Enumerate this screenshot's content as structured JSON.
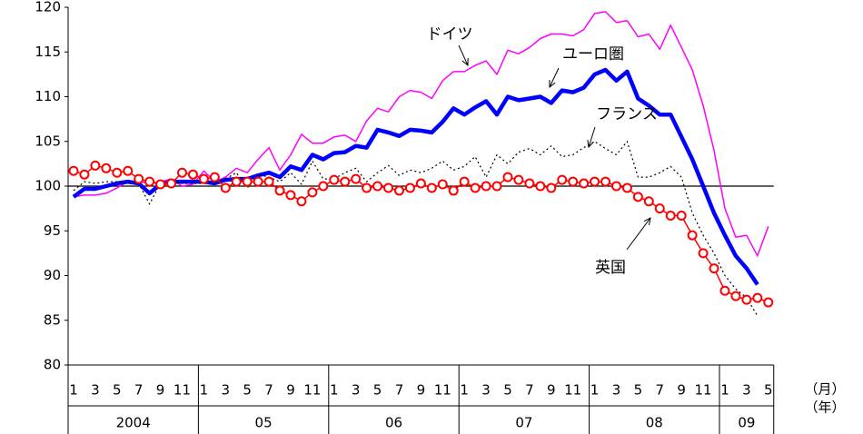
{
  "chart_data": {
    "type": "line",
    "categories": [
      "1",
      null,
      "3",
      null,
      "5",
      null,
      "7",
      null,
      "9",
      null,
      "11",
      null,
      "1",
      null,
      "3",
      null,
      "5",
      null,
      "7",
      null,
      "9",
      null,
      "11",
      null,
      "1",
      null,
      "3",
      null,
      "5",
      null,
      "7",
      null,
      "9",
      null,
      "11",
      null,
      "1",
      null,
      "3",
      null,
      "5",
      null,
      "7",
      null,
      "9",
      null,
      "11",
      null,
      "1",
      null,
      "3",
      null,
      "5",
      null,
      "7",
      null,
      "9",
      null,
      "11",
      null,
      "1",
      null,
      "3",
      null,
      "5"
    ],
    "years": [
      "2004",
      "05",
      "06",
      "07",
      "08",
      "09"
    ],
    "x_unit_label": "（月）",
    "year_unit_label": "（年）",
    "ylim": [
      80,
      120
    ],
    "yticks": [
      80,
      85,
      90,
      95,
      100,
      105,
      110,
      115,
      120
    ],
    "reference_line": 100,
    "series": [
      {
        "name": "ドイツ",
        "color": "#ff00ff",
        "width": 1.5,
        "style": "solid",
        "markers": false,
        "values": [
          98.8,
          99,
          99,
          99.2,
          99.8,
          100.5,
          100.5,
          100.3,
          100.5,
          100.8,
          100,
          100.2,
          101.7,
          100.5,
          101,
          102,
          101.5,
          103,
          104.3,
          101.8,
          103.5,
          105.8,
          104.8,
          104.8,
          105.5,
          105.7,
          105,
          107.3,
          108.7,
          108.3,
          110,
          110.7,
          110.5,
          109.8,
          111.8,
          112.8,
          112.8,
          113.5,
          114,
          112.5,
          115.2,
          114.8,
          115.5,
          116.5,
          117,
          117,
          116.8,
          117.5,
          119.3,
          119.5,
          118.3,
          118.5,
          116.7,
          117,
          115.3,
          118,
          115.5,
          113,
          109,
          104,
          97.5,
          94.3,
          94.5,
          92.2,
          95.5
        ]
      },
      {
        "name": "ユーロ圏",
        "color": "#0000ff",
        "width": 4.5,
        "style": "solid",
        "markers": false,
        "values": [
          98.8,
          99.7,
          99.7,
          100,
          100.3,
          100.5,
          100.3,
          99.2,
          100.2,
          100.5,
          100.5,
          100.5,
          100.5,
          100.3,
          100.7,
          100.8,
          100.8,
          101.2,
          101.5,
          101,
          102.2,
          101.8,
          103.5,
          103,
          103.7,
          103.8,
          104.5,
          104.3,
          106.3,
          106,
          105.6,
          106.3,
          106.2,
          106,
          107.2,
          108.7,
          108,
          108.8,
          109.5,
          108,
          110,
          109.6,
          109.8,
          110,
          109.3,
          110.7,
          110.5,
          111,
          112.5,
          113,
          111.8,
          112.8,
          109.8,
          109,
          108,
          108,
          105.5,
          103,
          100,
          97,
          94.5,
          92.2,
          90.8,
          89,
          null
        ]
      },
      {
        "name": "フランス",
        "color": "#000000",
        "width": 1.2,
        "style": "dotted",
        "markers": false,
        "values": [
          99.5,
          100.5,
          100.3,
          100.5,
          100.5,
          100.3,
          100.3,
          98,
          100.3,
          100.5,
          100.3,
          100.3,
          100.3,
          100.3,
          100.8,
          101.5,
          99.8,
          101.3,
          101,
          100.5,
          101.5,
          100.2,
          102.8,
          100.8,
          100.8,
          101.5,
          102,
          100.5,
          101.5,
          102.3,
          101.2,
          101.8,
          101.5,
          102,
          102.8,
          101.8,
          102.2,
          103.3,
          101,
          103.5,
          102.5,
          103.8,
          104.2,
          103.5,
          104.5,
          103.3,
          103.5,
          104.3,
          105,
          104.2,
          103.5,
          105,
          101,
          101,
          101.5,
          102.2,
          101,
          97,
          94.5,
          92.5,
          90,
          88.5,
          87.5,
          85.5,
          null
        ]
      },
      {
        "name": "英国",
        "color": "#ff0000",
        "width": 1.5,
        "style": "solid",
        "markers": true,
        "values": [
          101.7,
          101.3,
          102.3,
          102,
          101.5,
          101.7,
          100.8,
          100.5,
          100.2,
          100.3,
          101.5,
          101.3,
          100.8,
          101,
          99.8,
          100.5,
          100.5,
          100.5,
          100.5,
          99.5,
          99,
          98.3,
          99.3,
          100,
          100.7,
          100.5,
          100.8,
          99.8,
          100,
          99.8,
          99.5,
          99.8,
          100.3,
          99.8,
          100.2,
          99.5,
          100.5,
          99.8,
          100,
          100,
          101,
          100.7,
          100.3,
          100,
          99.8,
          100.7,
          100.5,
          100.3,
          100.5,
          100.5,
          100,
          99.8,
          98.8,
          98.3,
          97.5,
          96.7,
          96.7,
          94.5,
          92.5,
          90.8,
          88.3,
          87.7,
          87.3,
          87.5,
          87
        ]
      }
    ]
  }
}
